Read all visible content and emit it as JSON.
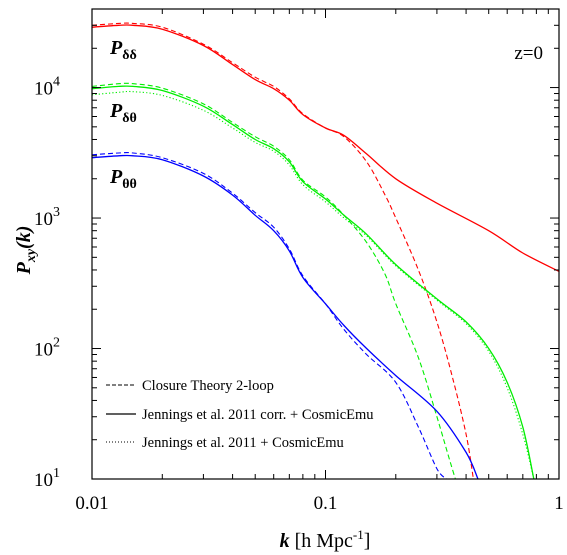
{
  "chart_data": {
    "type": "line",
    "xscale": "log",
    "yscale": "log",
    "xlim": [
      0.01,
      1
    ],
    "ylim": [
      10,
      40000
    ],
    "xlabel": {
      "main": "k",
      "unit": "[h Mpc",
      "exp": "-1",
      "close": "]"
    },
    "ylabel": {
      "main": "P",
      "sub": "xy",
      "rest": "(k)"
    },
    "x_ticks": [
      {
        "value": 0.01,
        "label": "0.01"
      },
      {
        "value": 0.1,
        "label": "0.1"
      },
      {
        "value": 1,
        "label": "1"
      }
    ],
    "y_ticks": [
      {
        "value": 10,
        "base": "10",
        "exp": "1"
      },
      {
        "value": 100,
        "base": "10",
        "exp": "2"
      },
      {
        "value": 1000,
        "base": "10",
        "exp": "3"
      },
      {
        "value": 10000,
        "base": "10",
        "exp": "4"
      }
    ],
    "annotation": "z=0",
    "curve_labels": [
      {
        "main": "P",
        "sub": "δδ"
      },
      {
        "main": "P",
        "sub": "δθ"
      },
      {
        "main": "P",
        "sub": "θθ"
      }
    ],
    "colors": {
      "dd": "#ff0000",
      "dt": "#00ee00",
      "tt": "#0000ff"
    },
    "legend": {
      "placement": "bottom-left",
      "entries": [
        {
          "label": "Closure Theory 2-loop",
          "style": "dashed"
        },
        {
          "label": "Jennings et al. 2011 corr. + CosmicEmu",
          "style": "solid"
        },
        {
          "label": "Jennings et al. 2011 + CosmicEmu",
          "style": "dotted"
        }
      ]
    },
    "series": [
      {
        "key": "dd",
        "style": "solid",
        "color": "#ff0000",
        "x": [
          0.01,
          0.013,
          0.015,
          0.02,
          0.03,
          0.04,
          0.05,
          0.06,
          0.07,
          0.08,
          0.1,
          0.12,
          0.15,
          0.2,
          0.3,
          0.5,
          0.7,
          1.0
        ],
        "y": [
          29000,
          30000,
          30000,
          28000,
          21000,
          15000,
          11500,
          9800,
          8000,
          6200,
          4900,
          4300,
          3100,
          2000,
          1300,
          800,
          540,
          390
        ]
      },
      {
        "key": "dd",
        "style": "dashed",
        "color": "#ff0000",
        "x": [
          0.01,
          0.013,
          0.015,
          0.02,
          0.03,
          0.04,
          0.05,
          0.06,
          0.07,
          0.08,
          0.1,
          0.12,
          0.15,
          0.18,
          0.2,
          0.25,
          0.3,
          0.35,
          0.4,
          0.43
        ],
        "y": [
          30000,
          31000,
          31000,
          29000,
          21500,
          15500,
          12000,
          10200,
          8200,
          6300,
          4900,
          4200,
          2700,
          1500,
          1000,
          400,
          160,
          60,
          22,
          10
        ]
      },
      {
        "key": "dt",
        "style": "solid",
        "color": "#00ee00",
        "x": [
          0.01,
          0.013,
          0.015,
          0.02,
          0.03,
          0.04,
          0.05,
          0.06,
          0.07,
          0.08,
          0.1,
          0.12,
          0.15,
          0.2,
          0.3,
          0.4,
          0.5,
          0.6,
          0.7,
          0.78
        ],
        "y": [
          9800,
          10200,
          10200,
          9500,
          7200,
          5200,
          4000,
          3400,
          2700,
          1900,
          1400,
          1050,
          750,
          440,
          240,
          160,
          100,
          55,
          25,
          10
        ]
      },
      {
        "key": "dt",
        "style": "dashed",
        "color": "#00ee00",
        "x": [
          0.01,
          0.013,
          0.015,
          0.02,
          0.03,
          0.04,
          0.05,
          0.06,
          0.07,
          0.08,
          0.1,
          0.12,
          0.15,
          0.18,
          0.2,
          0.25,
          0.3,
          0.34,
          0.36
        ],
        "y": [
          10200,
          10700,
          10700,
          9900,
          7500,
          5400,
          4200,
          3550,
          2800,
          1950,
          1450,
          1050,
          650,
          370,
          220,
          85,
          30,
          14,
          10
        ]
      },
      {
        "key": "dt",
        "style": "dotted",
        "color": "#00ee00",
        "x": [
          0.01,
          0.013,
          0.015,
          0.02,
          0.03,
          0.04,
          0.05,
          0.06,
          0.07,
          0.08,
          0.1,
          0.12,
          0.15,
          0.2,
          0.3,
          0.4,
          0.5,
          0.6,
          0.7,
          0.78
        ],
        "y": [
          8800,
          9200,
          9300,
          8700,
          6700,
          4900,
          3800,
          3250,
          2550,
          1800,
          1330,
          1000,
          730,
          430,
          235,
          155,
          95,
          50,
          22,
          10
        ]
      },
      {
        "key": "tt",
        "style": "solid",
        "color": "#0000ff",
        "x": [
          0.01,
          0.013,
          0.015,
          0.02,
          0.03,
          0.04,
          0.05,
          0.06,
          0.07,
          0.08,
          0.1,
          0.12,
          0.15,
          0.2,
          0.3,
          0.4,
          0.45
        ],
        "y": [
          2900,
          3000,
          3000,
          2800,
          2100,
          1500,
          1050,
          800,
          560,
          350,
          220,
          150,
          100,
          62,
          33,
          16,
          10
        ]
      },
      {
        "key": "tt",
        "style": "dashed",
        "color": "#0000ff",
        "x": [
          0.01,
          0.013,
          0.015,
          0.02,
          0.03,
          0.04,
          0.05,
          0.06,
          0.07,
          0.08,
          0.1,
          0.12,
          0.15,
          0.2,
          0.25,
          0.3,
          0.33
        ],
        "y": [
          3050,
          3150,
          3150,
          2900,
          2200,
          1550,
          1100,
          850,
          580,
          360,
          220,
          140,
          90,
          55,
          25,
          12,
          10
        ]
      }
    ]
  }
}
